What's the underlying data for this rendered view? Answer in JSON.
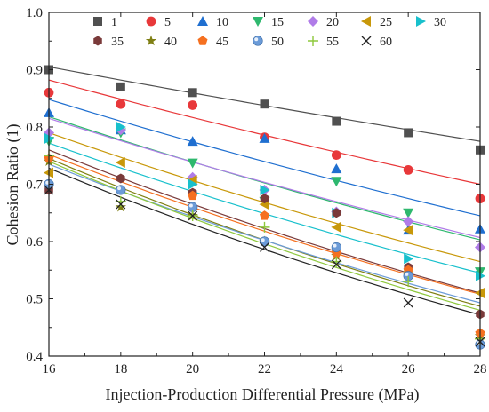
{
  "chart_data": {
    "type": "scatter",
    "title": "",
    "xlabel": "Injection-Production Differential Pressure (MPa)",
    "ylabel": "Cohesion Ratio (1)",
    "xlim": [
      16,
      28
    ],
    "ylim": [
      0.4,
      1.0
    ],
    "xticks": [
      "16",
      "18",
      "20",
      "22",
      "24",
      "26",
      "28"
    ],
    "yticks": [
      "0.4",
      "0.5",
      "0.6",
      "0.7",
      "0.8",
      "0.9",
      "1.0"
    ],
    "x": [
      16,
      18,
      20,
      22,
      24,
      26,
      28
    ],
    "legend_position": "top (inside plot, two rows)",
    "series": [
      {
        "name": "1",
        "color": "#505050",
        "marker": "square",
        "values": [
          0.9,
          0.87,
          0.86,
          0.84,
          0.81,
          0.79,
          0.76
        ],
        "fit": [
          0.905,
          0.775
        ]
      },
      {
        "name": "5",
        "color": "#e8383a",
        "marker": "circle",
        "values": [
          0.86,
          0.84,
          0.838,
          0.782,
          0.751,
          0.725,
          0.675
        ],
        "fit": [
          0.882,
          0.7
        ]
      },
      {
        "name": "10",
        "color": "#1f6fd0",
        "marker": "triangle-up",
        "values": [
          0.825,
          0.795,
          0.775,
          0.78,
          0.727,
          0.62,
          0.622
        ],
        "fit": [
          0.848,
          0.645
        ]
      },
      {
        "name": "15",
        "color": "#2eb86e",
        "marker": "triangle-down",
        "values": [
          0.775,
          0.79,
          0.737,
          0.67,
          0.705,
          0.65,
          0.547
        ],
        "fit": [
          0.818,
          0.603
        ]
      },
      {
        "name": "20",
        "color": "#b07ce8",
        "marker": "diamond",
        "values": [
          0.79,
          0.795,
          0.712,
          0.69,
          0.652,
          0.635,
          0.59
        ],
        "fit": [
          0.815,
          0.607
        ]
      },
      {
        "name": "25",
        "color": "#c8980a",
        "marker": "triangle-left",
        "values": [
          0.72,
          0.738,
          0.707,
          0.665,
          0.625,
          0.62,
          0.51
        ],
        "fit": [
          0.79,
          0.565
        ]
      },
      {
        "name": "30",
        "color": "#18c0cc",
        "marker": "triangle-right",
        "values": [
          0.78,
          0.8,
          0.7,
          0.69,
          0.65,
          0.57,
          0.54
        ],
        "fit": [
          0.772,
          0.545
        ]
      },
      {
        "name": "35",
        "color": "#7a3a3a",
        "marker": "hexagon",
        "values": [
          0.69,
          0.71,
          0.685,
          0.675,
          0.65,
          0.555,
          0.473
        ],
        "fit": [
          0.76,
          0.51
        ]
      },
      {
        "name": "40",
        "color": "#7f7f14",
        "marker": "star",
        "values": [
          0.74,
          0.66,
          0.645,
          0.6,
          0.575,
          0.545,
          0.435
        ],
        "fit": [
          0.745,
          0.487
        ]
      },
      {
        "name": "45",
        "color": "#f57020",
        "marker": "pentagon",
        "values": [
          0.745,
          0.69,
          0.68,
          0.645,
          0.58,
          0.55,
          0.44
        ],
        "fit": [
          0.752,
          0.508
        ]
      },
      {
        "name": "50",
        "color": "#6b9bd8",
        "marker": "sphere",
        "values": [
          0.7,
          0.69,
          0.66,
          0.6,
          0.59,
          0.54,
          0.42
        ],
        "fit": [
          0.735,
          0.493
        ]
      },
      {
        "name": "55",
        "color": "#8ec83c",
        "marker": "plus",
        "values": [
          0.75,
          0.67,
          0.645,
          0.625,
          0.565,
          0.53,
          0.43
        ],
        "fit": [
          0.74,
          0.48
        ]
      },
      {
        "name": "60",
        "color": "#222222",
        "marker": "x",
        "values": [
          0.69,
          0.665,
          0.645,
          0.59,
          0.56,
          0.493,
          0.425
        ],
        "fit": [
          0.728,
          0.472
        ]
      }
    ]
  }
}
